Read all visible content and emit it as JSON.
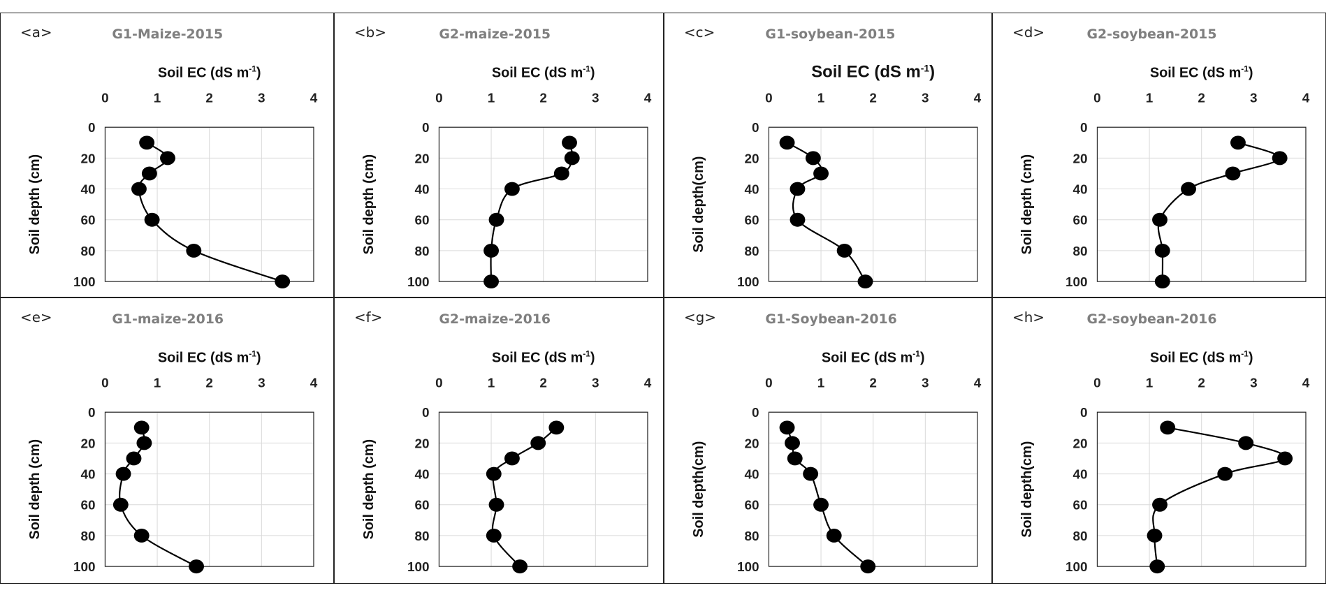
{
  "chart_data": [
    {
      "id": "a",
      "label": "<a>",
      "type": "line",
      "title": "G1-Maize-2015",
      "xlabel": "Soil EC  (dS m",
      "xlabel_sup": "-1",
      "xlabel_end": ")",
      "ylabel": "Soil depth (cm)",
      "xlim": [
        0,
        4
      ],
      "ylim": [
        0,
        100
      ],
      "xticks": [
        "0",
        "1",
        "2",
        "3",
        "4"
      ],
      "yticks": [
        "0",
        "20",
        "40",
        "60",
        "80",
        "100"
      ],
      "series": [
        {
          "name": "EC",
          "x": [
            0.8,
            1.2,
            0.85,
            0.65,
            0.9,
            1.7,
            3.4
          ],
          "y": [
            10,
            20,
            30,
            40,
            60,
            80,
            100
          ]
        }
      ]
    },
    {
      "id": "b",
      "label": "<b>",
      "type": "line",
      "title": "G2-maize-2015",
      "xlabel": "Soil EC  (dS m",
      "xlabel_sup": "-1",
      "xlabel_end": ")",
      "ylabel": "Soil depth (cm)",
      "xlim": [
        0,
        4
      ],
      "ylim": [
        0,
        100
      ],
      "xticks": [
        "0",
        "1",
        "2",
        "3",
        "4"
      ],
      "yticks": [
        "0",
        "20",
        "40",
        "60",
        "80",
        "100"
      ],
      "series": [
        {
          "name": "EC",
          "x": [
            2.5,
            2.55,
            2.35,
            1.4,
            1.1,
            1.0,
            1.0
          ],
          "y": [
            10,
            20,
            30,
            40,
            60,
            80,
            100
          ]
        }
      ]
    },
    {
      "id": "c",
      "label": "<c>",
      "type": "line",
      "title": "G1-soybean-2015",
      "xlabel": "Soil EC  (dS m",
      "xlabel_sup": "-1",
      "xlabel_end": ")",
      "ylabel": "Soil depth(cm)",
      "xlim": [
        0,
        4
      ],
      "ylim": [
        0,
        100
      ],
      "xticks": [
        "0",
        "1",
        "2",
        "3",
        "4"
      ],
      "yticks": [
        "0",
        "20",
        "40",
        "60",
        "80",
        "100"
      ],
      "series": [
        {
          "name": "EC",
          "x": [
            0.35,
            0.85,
            1.0,
            0.55,
            0.55,
            1.45,
            1.85
          ],
          "y": [
            10,
            20,
            30,
            40,
            60,
            80,
            100
          ]
        }
      ]
    },
    {
      "id": "d",
      "label": "<d>",
      "type": "line",
      "title": "G2-soybean-2015",
      "xlabel": "Soil EC  (dS m",
      "xlabel_sup": "-1",
      "xlabel_end": ")",
      "ylabel": "Soil depth (cm)",
      "xlim": [
        0,
        4
      ],
      "ylim": [
        0,
        100
      ],
      "xticks": [
        "0",
        "1",
        "2",
        "3",
        "4"
      ],
      "yticks": [
        "0",
        "20",
        "40",
        "60",
        "80",
        "100"
      ],
      "series": [
        {
          "name": "EC",
          "x": [
            2.7,
            3.5,
            2.6,
            1.75,
            1.2,
            1.25,
            1.25
          ],
          "y": [
            10,
            20,
            30,
            40,
            60,
            80,
            100
          ]
        }
      ]
    },
    {
      "id": "e",
      "label": "<e>",
      "type": "line",
      "title": "G1-maize-2016",
      "xlabel": "Soil EC  (dS m",
      "xlabel_sup": "-1",
      "xlabel_end": ")",
      "ylabel": "Soil depth (cm)",
      "xlim": [
        0,
        4
      ],
      "ylim": [
        0,
        100
      ],
      "xticks": [
        "0",
        "1",
        "2",
        "3",
        "4"
      ],
      "yticks": [
        "0",
        "20",
        "40",
        "60",
        "80",
        "100"
      ],
      "series": [
        {
          "name": "EC",
          "x": [
            0.7,
            0.75,
            0.55,
            0.35,
            0.3,
            0.7,
            1.75
          ],
          "y": [
            10,
            20,
            30,
            40,
            60,
            80,
            100
          ]
        }
      ]
    },
    {
      "id": "f",
      "label": "<f>",
      "type": "line",
      "title": "G2-maize-2016",
      "xlabel": "Soil EC  (dS m",
      "xlabel_sup": "-1",
      "xlabel_end": ")",
      "ylabel": "Soil depth (cm)",
      "xlim": [
        0,
        4
      ],
      "ylim": [
        0,
        100
      ],
      "xticks": [
        "0",
        "1",
        "2",
        "3",
        "4"
      ],
      "yticks": [
        "0",
        "20",
        "40",
        "60",
        "80",
        "100"
      ],
      "series": [
        {
          "name": "EC",
          "x": [
            2.25,
            1.9,
            1.4,
            1.05,
            1.1,
            1.05,
            1.55
          ],
          "y": [
            10,
            20,
            30,
            40,
            60,
            80,
            100
          ]
        }
      ]
    },
    {
      "id": "g",
      "label": "<g>",
      "type": "line",
      "title": "G1-Soybean-2016",
      "xlabel": "Soil EC  (dS m",
      "xlabel_sup": "-1",
      "xlabel_end": ")",
      "ylabel": "Soil depth(cm)",
      "xlim": [
        0,
        4
      ],
      "ylim": [
        0,
        100
      ],
      "xticks": [
        "0",
        "1",
        "2",
        "3",
        "4"
      ],
      "yticks": [
        "0",
        "20",
        "40",
        "60",
        "80",
        "100"
      ],
      "series": [
        {
          "name": "EC",
          "x": [
            0.35,
            0.45,
            0.5,
            0.8,
            1.0,
            1.25,
            1.9
          ],
          "y": [
            10,
            20,
            30,
            40,
            60,
            80,
            100
          ]
        }
      ]
    },
    {
      "id": "h",
      "label": "<h>",
      "type": "line",
      "title": "G2-soybean-2016",
      "xlabel": "Soil EC  (dS m",
      "xlabel_sup": "-1",
      "xlabel_end": ")",
      "ylabel": "Soil depth(cm)",
      "xlim": [
        0,
        4
      ],
      "ylim": [
        0,
        100
      ],
      "xticks": [
        "0",
        "1",
        "2",
        "3",
        "4"
      ],
      "yticks": [
        "0",
        "20",
        "40",
        "60",
        "80",
        "100"
      ],
      "series": [
        {
          "name": "EC",
          "x": [
            1.35,
            2.85,
            3.6,
            2.45,
            1.2,
            1.1,
            1.15
          ],
          "y": [
            10,
            20,
            30,
            40,
            60,
            80,
            100
          ]
        }
      ]
    }
  ]
}
